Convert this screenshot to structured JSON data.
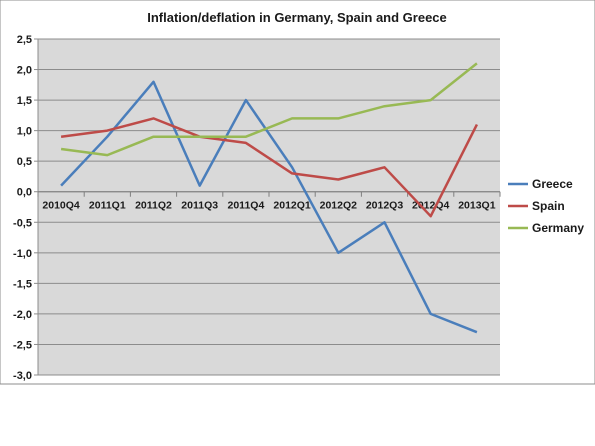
{
  "chart_data": {
    "type": "line",
    "title": "Inflation/deflation in Germany, Spain and Greece",
    "categories": [
      "2010Q4",
      "2011Q1",
      "2011Q2",
      "2011Q3",
      "2011Q4",
      "2012Q1",
      "2012Q2",
      "2012Q3",
      "2012Q4",
      "2013Q1"
    ],
    "series": [
      {
        "name": "Greece",
        "color": "#4a7ebb",
        "values": [
          0.1,
          0.9,
          1.8,
          0.1,
          1.5,
          0.4,
          -1.0,
          -0.5,
          -2.0,
          -2.3
        ]
      },
      {
        "name": "Spain",
        "color": "#be4b48",
        "values": [
          0.9,
          1.0,
          1.2,
          0.9,
          0.8,
          0.3,
          0.2,
          0.4,
          -0.4,
          1.1
        ]
      },
      {
        "name": "Germany",
        "color": "#98b954",
        "values": [
          0.7,
          0.6,
          0.9,
          0.9,
          0.9,
          1.2,
          1.2,
          1.4,
          1.5,
          2.1
        ]
      }
    ],
    "ylim": [
      -3.0,
      2.5
    ],
    "ytick_step": 0.5,
    "ytick_labels": [
      "2,5",
      "2,0",
      "1,5",
      "1,0",
      "0,5",
      "0,0",
      "-0,5",
      "-1,0",
      "-1,5",
      "-2,0",
      "-2,5",
      "-3,0"
    ],
    "grid": true,
    "legend_position": "right",
    "xlabel": "",
    "ylabel": ""
  }
}
